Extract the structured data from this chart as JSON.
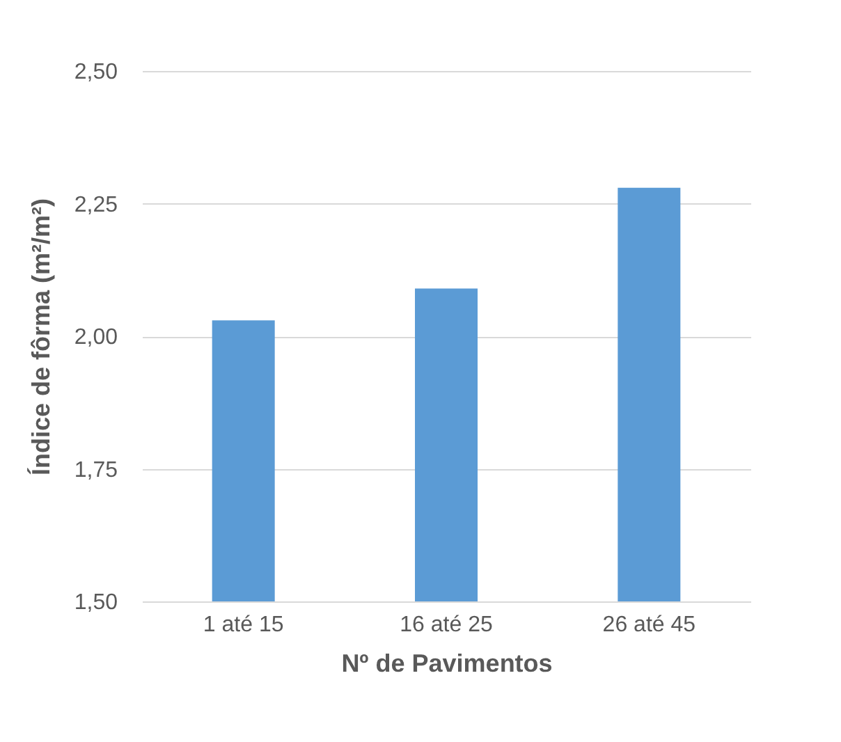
{
  "chart_data": {
    "type": "bar",
    "xlabel": "Nº de Pavimentos",
    "ylabel": "Índice de fôrma (m²/m²)",
    "categories": [
      "1 até 15",
      "16 até 25",
      "26 até 45"
    ],
    "series": [
      {
        "color": "#5b9bd5",
        "values": [
          2.03,
          2.09,
          2.28
        ]
      }
    ],
    "ylim": [
      1.5,
      2.5
    ],
    "yticks": [
      {
        "value": 1.5,
        "label": "1,50"
      },
      {
        "value": 1.75,
        "label": "1,75"
      },
      {
        "value": 2.0,
        "label": "2,00"
      },
      {
        "value": 2.25,
        "label": "2,25"
      },
      {
        "value": 2.5,
        "label": "2,50"
      }
    ],
    "grid": "y"
  }
}
